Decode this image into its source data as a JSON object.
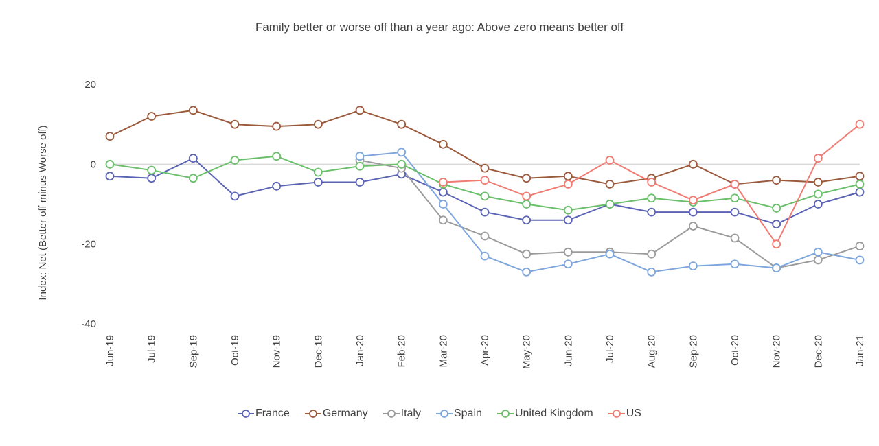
{
  "chart_data": {
    "type": "line",
    "title": "Family better or worse off than a year ago: Above zero means better off",
    "xlabel": "",
    "ylabel": "Index: Net (Better off minus Worse off)",
    "ylim": [
      -40,
      20
    ],
    "yticks": [
      20,
      0,
      -20,
      -40
    ],
    "grid": false,
    "zero_line": true,
    "legend_position": "bottom",
    "categories": [
      "Jun-19",
      "Jul-19",
      "Sep-19",
      "Oct-19",
      "Nov-19",
      "Dec-19",
      "Jan-20",
      "Feb-20",
      "Mar-20",
      "Apr-20",
      "May-20",
      "Jun-20",
      "Jul-20",
      "Aug-20",
      "Sep-20",
      "Oct-20",
      "Nov-20",
      "Dec-20",
      "Jan-21"
    ],
    "series": [
      {
        "name": "France",
        "color": "#5b63b5",
        "values": [
          -3,
          -3.5,
          1.5,
          -8,
          -5.5,
          -4.5,
          -4.5,
          -2.5,
          -7,
          -12,
          -14,
          -14,
          -10,
          -12,
          -12,
          -12,
          -15,
          -10,
          -7
        ]
      },
      {
        "name": "Germany",
        "color": "#9c5a3c",
        "values": [
          7,
          12,
          13.5,
          10,
          9.5,
          10,
          13.5,
          10,
          5,
          -1,
          -3.5,
          -3,
          -5,
          -3.5,
          0,
          -5,
          -4,
          -4.5,
          -3
        ]
      },
      {
        "name": "Italy",
        "color": "#9b9b9b",
        "values": [
          null,
          null,
          null,
          null,
          null,
          null,
          1,
          -1,
          -14,
          -18,
          -22.5,
          -22,
          -22,
          -22.5,
          -15.5,
          -18.5,
          -26,
          -24,
          -20.5
        ]
      },
      {
        "name": "Spain",
        "color": "#7ea6dc",
        "values": [
          null,
          null,
          null,
          null,
          null,
          null,
          2,
          3,
          -10,
          -23,
          -27,
          -25,
          -22.5,
          -27,
          -25.5,
          -25,
          -26,
          -22,
          -24
        ]
      },
      {
        "name": "United Kingdom",
        "color": "#6abf6a",
        "values": [
          0,
          -1.5,
          -3.5,
          1,
          2,
          -2,
          -0.5,
          0,
          -5,
          -8,
          -10,
          -11.5,
          -10,
          -8.5,
          -9.5,
          -8.5,
          -11,
          -7.5,
          -5
        ]
      },
      {
        "name": "US",
        "color": "#f07b72",
        "values": [
          null,
          null,
          null,
          null,
          null,
          null,
          null,
          null,
          -4.5,
          -4,
          -8,
          -5,
          1,
          -4.5,
          -9,
          -5,
          -20,
          1.5,
          10
        ]
      }
    ]
  }
}
